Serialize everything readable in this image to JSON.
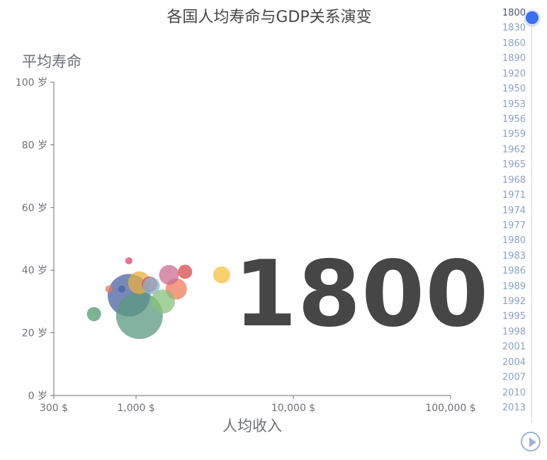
{
  "chart_data": {
    "type": "scatter",
    "title": "各国人均寿命与GDP关系演变",
    "xlabel": "人均收入",
    "ylabel": "平均寿命",
    "x_scale": "log",
    "xlim": [
      300,
      100000
    ],
    "ylim": [
      0,
      100
    ],
    "x_ticks": [
      {
        "value": 300,
        "label": "300 $"
      },
      {
        "value": 1000,
        "label": "1,000 $"
      },
      {
        "value": 10000,
        "label": "10,000 $"
      },
      {
        "value": 100000,
        "label": "100,000 $"
      }
    ],
    "y_ticks": [
      {
        "value": 0,
        "label": "0 岁"
      },
      {
        "value": 20,
        "label": "20 岁"
      },
      {
        "value": 40,
        "label": "40 岁"
      },
      {
        "value": 60,
        "label": "60 岁"
      },
      {
        "value": 80,
        "label": "80 岁"
      },
      {
        "value": 100,
        "label": "100 岁"
      }
    ],
    "current_year": "1800",
    "points": [
      {
        "x": 900,
        "y": 32,
        "r": 30,
        "color": "#4a62a0"
      },
      {
        "x": 1050,
        "y": 25.5,
        "r": 33,
        "color": "#5a9a80"
      },
      {
        "x": 1800,
        "y": 34,
        "r": 15,
        "color": "#f07a5a"
      },
      {
        "x": 1050,
        "y": 36,
        "r": 16,
        "color": "#e8b040"
      },
      {
        "x": 1480,
        "y": 30,
        "r": 17,
        "color": "#86c07a"
      },
      {
        "x": 1620,
        "y": 38.5,
        "r": 14,
        "color": "#cc6e8f"
      },
      {
        "x": 2050,
        "y": 39.5,
        "r": 10,
        "color": "#d84a4a"
      },
      {
        "x": 3500,
        "y": 38.5,
        "r": 12,
        "color": "#f5c040"
      },
      {
        "x": 1220,
        "y": 35.5,
        "r": 11,
        "color": "#d44a6a"
      },
      {
        "x": 1250,
        "y": 35,
        "r": 12,
        "color": "#88b8c8"
      },
      {
        "x": 540,
        "y": 26,
        "r": 10,
        "color": "#4f9a70"
      },
      {
        "x": 670,
        "y": 34,
        "r": 5,
        "color": "#f07a5a"
      },
      {
        "x": 810,
        "y": 34,
        "r": 5,
        "color": "#4a62a0"
      },
      {
        "x": 900,
        "y": 43,
        "r": 5,
        "color": "#d44a6a"
      }
    ]
  },
  "timeline": {
    "years": [
      "1800",
      "1830",
      "1860",
      "1890",
      "1920",
      "1950",
      "1953",
      "1956",
      "1959",
      "1962",
      "1965",
      "1968",
      "1971",
      "1974",
      "1977",
      "1980",
      "1983",
      "1986",
      "1989",
      "1992",
      "1995",
      "1998",
      "2001",
      "2004",
      "2007",
      "2010",
      "2013"
    ],
    "active": "1800"
  }
}
